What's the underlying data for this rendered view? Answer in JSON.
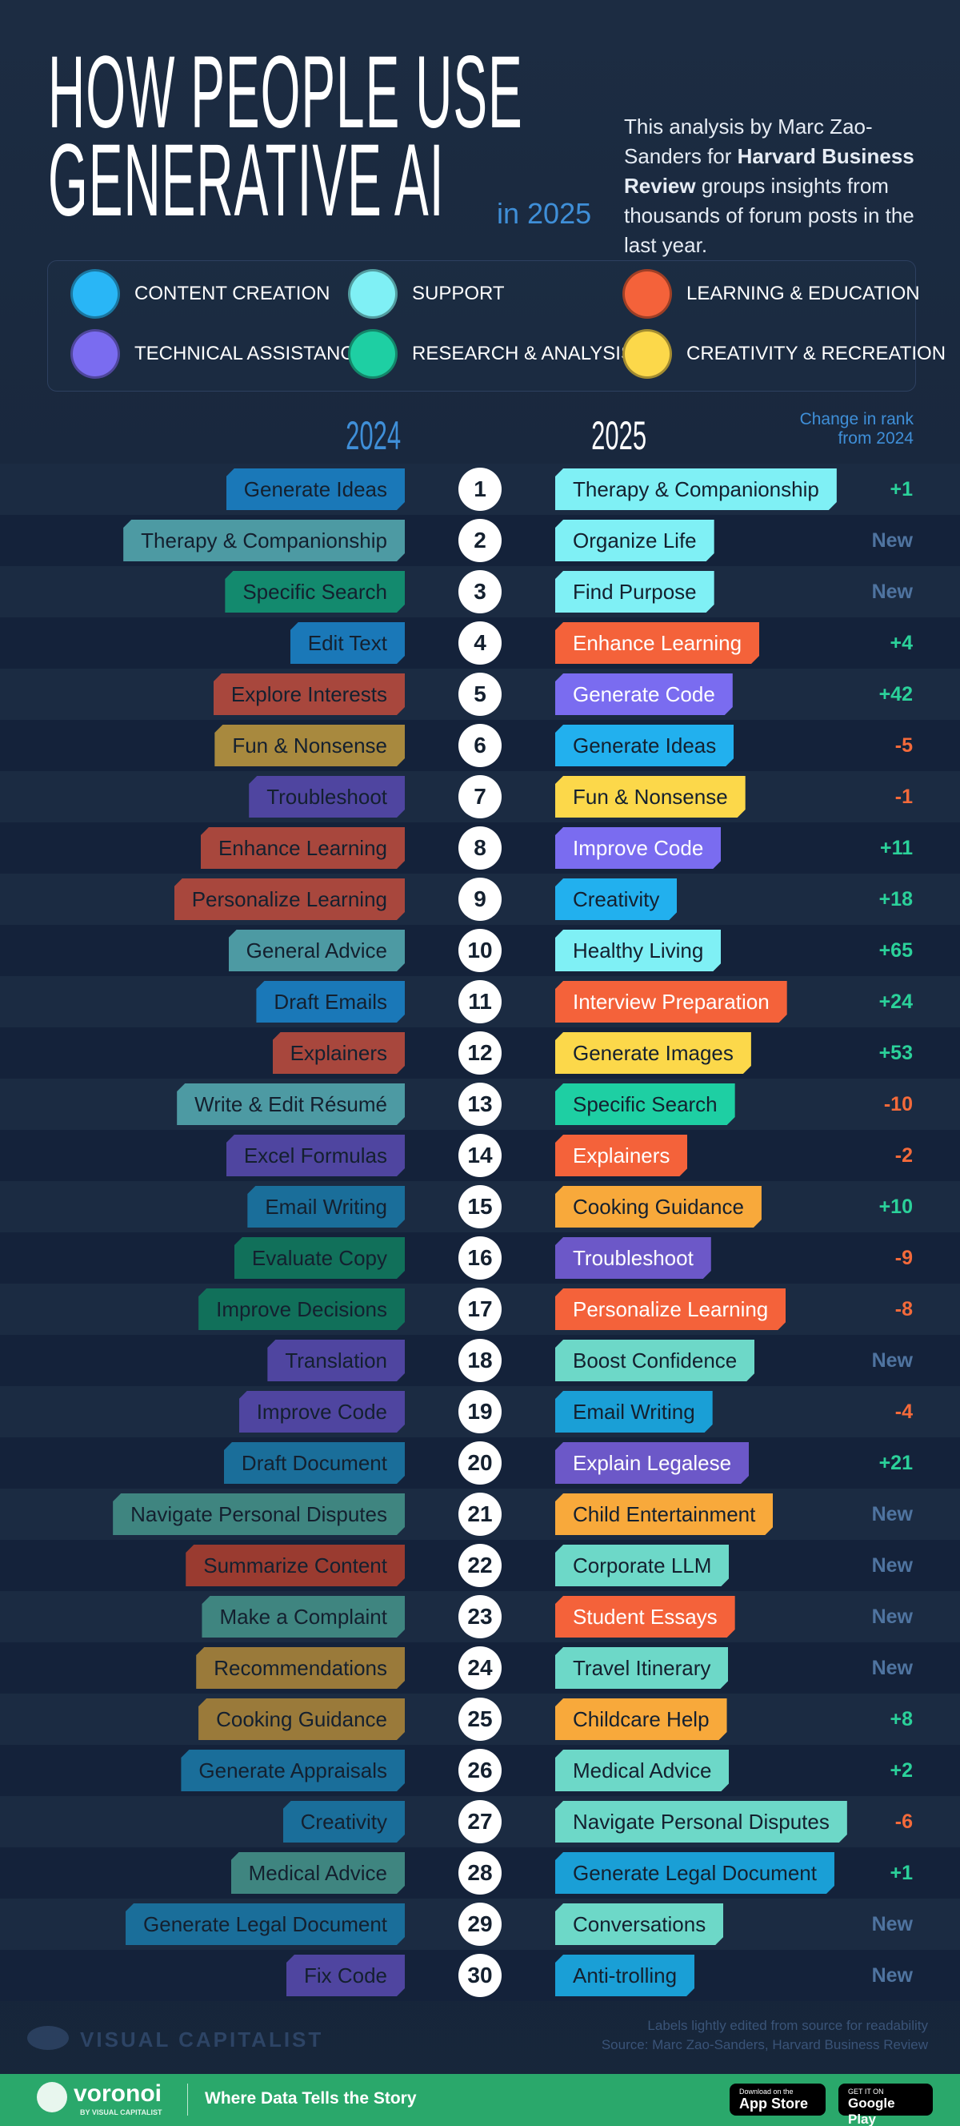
{
  "header": {
    "title_lines": [
      "HOW PEOPLE USE",
      "GENERATIVE AI"
    ],
    "title_suffix": "in 2025",
    "description": {
      "before": "This analysis by Marc Zao-Sanders for ",
      "bold": "Harvard Business Review",
      "after": " groups insights from thousands of forum posts in the last year."
    }
  },
  "legend": [
    {
      "label": "CONTENT CREATION",
      "color": "#29b6f6"
    },
    {
      "label": "SUPPORT",
      "color": "#7ff0f5"
    },
    {
      "label": "LEARNING & EDUCATION",
      "color": "#f4623a"
    },
    {
      "label": "TECHNICAL ASSISTANCE",
      "color": "#7a6cf0"
    },
    {
      "label": "RESEARCH & ANALYSIS",
      "color": "#1ecfa3"
    },
    {
      "label": "CREATIVITY & RECREATION",
      "color": "#fcd84a"
    }
  ],
  "columns": {
    "left": "2024",
    "right": "2025",
    "change": "Change in rank from 2024"
  },
  "rows": [
    {
      "rank": 1,
      "left": {
        "label": "Generate Ideas",
        "color": "#1a78b8"
      },
      "right": {
        "label": "Therapy & Companionship",
        "color": "#7ff0f5",
        "text_color": "#14202f"
      },
      "change": "+1",
      "change_color": "#2bd19a"
    },
    {
      "rank": 2,
      "left": {
        "label": "Therapy & Companionship",
        "color": "#4d9aa3"
      },
      "right": {
        "label": "Organize Life",
        "color": "#7ff0f5",
        "text_color": "#14202f"
      },
      "change": "New",
      "change_color": "#4f74a0"
    },
    {
      "rank": 3,
      "left": {
        "label": "Specific Search",
        "color": "#138a6e"
      },
      "right": {
        "label": "Find Purpose",
        "color": "#7ff0f5",
        "text_color": "#14202f"
      },
      "change": "New",
      "change_color": "#4f74a0"
    },
    {
      "rank": 4,
      "left": {
        "label": "Edit Text",
        "color": "#1a78b8"
      },
      "right": {
        "label": "Enhance Learning",
        "color": "#f4623a",
        "text_color": "#ffffff"
      },
      "change": "+4",
      "change_color": "#2bd19a"
    },
    {
      "rank": 5,
      "left": {
        "label": "Explore Interests",
        "color": "#a8473d"
      },
      "right": {
        "label": "Generate Code",
        "color": "#7a6cf0",
        "text_color": "#ffffff"
      },
      "change": "+42",
      "change_color": "#2bd19a"
    },
    {
      "rank": 6,
      "left": {
        "label": "Fun & Nonsense",
        "color": "#a8893e"
      },
      "right": {
        "label": "Generate Ideas",
        "color": "#22b0ee",
        "text_color": "#14202f"
      },
      "change": "-5",
      "change_color": "#f46a3a"
    },
    {
      "rank": 7,
      "left": {
        "label": "Troubleshoot",
        "color": "#4f45a0"
      },
      "right": {
        "label": "Fun & Nonsense",
        "color": "#fcd84a",
        "text_color": "#14202f"
      },
      "change": "-1",
      "change_color": "#f46a3a"
    },
    {
      "rank": 8,
      "left": {
        "label": "Enhance Learning",
        "color": "#a8473d"
      },
      "right": {
        "label": "Improve Code",
        "color": "#7a6cf0",
        "text_color": "#ffffff"
      },
      "change": "+11",
      "change_color": "#2bd19a"
    },
    {
      "rank": 9,
      "left": {
        "label": "Personalize Learning",
        "color": "#a8473d"
      },
      "right": {
        "label": "Creativity",
        "color": "#22b0ee",
        "text_color": "#14202f"
      },
      "change": "+18",
      "change_color": "#2bd19a"
    },
    {
      "rank": 10,
      "left": {
        "label": "General Advice",
        "color": "#4d9aa3"
      },
      "right": {
        "label": "Healthy Living",
        "color": "#7ff0f5",
        "text_color": "#14202f"
      },
      "change": "+65",
      "change_color": "#2bd19a"
    },
    {
      "rank": 11,
      "left": {
        "label": "Draft Emails",
        "color": "#1a78b8"
      },
      "right": {
        "label": "Interview Preparation",
        "color": "#f4623a",
        "text_color": "#ffffff"
      },
      "change": "+24",
      "change_color": "#2bd19a"
    },
    {
      "rank": 12,
      "left": {
        "label": "Explainers",
        "color": "#a8473d"
      },
      "right": {
        "label": "Generate Images",
        "color": "#fcd84a",
        "text_color": "#14202f"
      },
      "change": "+53",
      "change_color": "#2bd19a"
    },
    {
      "rank": 13,
      "left": {
        "label": "Write & Edit Résumé",
        "color": "#4d9aa3"
      },
      "right": {
        "label": "Specific Search",
        "color": "#1ecfa3",
        "text_color": "#14202f"
      },
      "change": "-10",
      "change_color": "#f46a3a"
    },
    {
      "rank": 14,
      "left": {
        "label": "Excel Formulas",
        "color": "#4f45a0"
      },
      "right": {
        "label": "Explainers",
        "color": "#f4623a",
        "text_color": "#ffffff"
      },
      "change": "-2",
      "change_color": "#f46a3a"
    },
    {
      "rank": 15,
      "left": {
        "label": "Email Writing",
        "color": "#1a6e9a"
      },
      "right": {
        "label": "Cooking Guidance",
        "color": "#f8a93b",
        "text_color": "#14202f"
      },
      "change": "+10",
      "change_color": "#2bd19a"
    },
    {
      "rank": 16,
      "left": {
        "label": "Evaluate Copy",
        "color": "#11705a"
      },
      "right": {
        "label": "Troubleshoot",
        "color": "#6c58c8",
        "text_color": "#ffffff"
      },
      "change": "-9",
      "change_color": "#f46a3a"
    },
    {
      "rank": 17,
      "left": {
        "label": "Improve Decisions",
        "color": "#11705a"
      },
      "right": {
        "label": "Personalize Learning",
        "color": "#f4623a",
        "text_color": "#ffffff"
      },
      "change": "-8",
      "change_color": "#f46a3a"
    },
    {
      "rank": 18,
      "left": {
        "label": "Translation",
        "color": "#4f45a0"
      },
      "right": {
        "label": "Boost Confidence",
        "color": "#6dd8c8",
        "text_color": "#14202f"
      },
      "change": "New",
      "change_color": "#4f74a0"
    },
    {
      "rank": 19,
      "left": {
        "label": "Improve Code",
        "color": "#4f45a0"
      },
      "right": {
        "label": "Email Writing",
        "color": "#1a9fd6",
        "text_color": "#14202f"
      },
      "change": "-4",
      "change_color": "#f46a3a"
    },
    {
      "rank": 20,
      "left": {
        "label": "Draft Document",
        "color": "#1a6e9a"
      },
      "right": {
        "label": "Explain Legalese",
        "color": "#6c58c8",
        "text_color": "#ffffff"
      },
      "change": "+21",
      "change_color": "#2bd19a"
    },
    {
      "rank": 21,
      "left": {
        "label": "Navigate Personal Disputes",
        "color": "#3f8580"
      },
      "right": {
        "label": "Child Entertainment",
        "color": "#f8a93b",
        "text_color": "#14202f"
      },
      "change": "New",
      "change_color": "#4f74a0"
    },
    {
      "rank": 22,
      "left": {
        "label": "Summarize Content",
        "color": "#9a3b30"
      },
      "right": {
        "label": "Corporate LLM",
        "color": "#6dd8c8",
        "text_color": "#14202f"
      },
      "change": "New",
      "change_color": "#4f74a0"
    },
    {
      "rank": 23,
      "left": {
        "label": "Make a Complaint",
        "color": "#3f8580"
      },
      "right": {
        "label": "Student Essays",
        "color": "#f4623a",
        "text_color": "#ffffff"
      },
      "change": "New",
      "change_color": "#4f74a0"
    },
    {
      "rank": 24,
      "left": {
        "label": "Recommendations",
        "color": "#9a7a3a"
      },
      "right": {
        "label": "Travel Itinerary",
        "color": "#6dd8c8",
        "text_color": "#14202f"
      },
      "change": "New",
      "change_color": "#4f74a0"
    },
    {
      "rank": 25,
      "left": {
        "label": "Cooking Guidance",
        "color": "#9a7a3a"
      },
      "right": {
        "label": "Childcare Help",
        "color": "#f8a93b",
        "text_color": "#14202f"
      },
      "change": "+8",
      "change_color": "#2bd19a"
    },
    {
      "rank": 26,
      "left": {
        "label": "Generate Appraisals",
        "color": "#1a6e9a"
      },
      "right": {
        "label": "Medical Advice",
        "color": "#6dd8c8",
        "text_color": "#14202f"
      },
      "change": "+2",
      "change_color": "#2bd19a"
    },
    {
      "rank": 27,
      "left": {
        "label": "Creativity",
        "color": "#1a6e9a"
      },
      "right": {
        "label": "Navigate Personal Disputes",
        "color": "#6dd8c8",
        "text_color": "#14202f"
      },
      "change": "-6",
      "change_color": "#f46a3a"
    },
    {
      "rank": 28,
      "left": {
        "label": "Medical Advice",
        "color": "#3f8580"
      },
      "right": {
        "label": "Generate Legal Document",
        "color": "#1a9fd6",
        "text_color": "#14202f"
      },
      "change": "+1",
      "change_color": "#2bd19a"
    },
    {
      "rank": 29,
      "left": {
        "label": "Generate Legal Document",
        "color": "#1a6e9a"
      },
      "right": {
        "label": "Conversations",
        "color": "#6dd8c8",
        "text_color": "#14202f"
      },
      "change": "New",
      "change_color": "#4f74a0"
    },
    {
      "rank": 30,
      "left": {
        "label": "Fix Code",
        "color": "#4f45a0"
      },
      "right": {
        "label": "Anti-trolling",
        "color": "#1a9fd6",
        "text_color": "#14202f"
      },
      "change": "New",
      "change_color": "#4f74a0"
    }
  ],
  "footer": {
    "notes": [
      "Labels lightly edited from source for readability",
      "Source: Marc Zao-Sanders, Harvard Business Review"
    ],
    "brand": "VISUAL CAPITALIST",
    "voronoi": "voronoi",
    "voronoi_sub": "BY VISUAL CAPITALIST",
    "tagline": "Where Data Tells the Story",
    "app_store": {
      "small": "Download on the",
      "big": "App Store"
    },
    "google_play": {
      "small": "GET IT ON",
      "big": "Google Play"
    }
  }
}
